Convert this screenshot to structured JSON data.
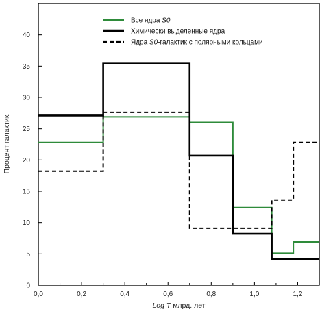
{
  "chart_data": {
    "type": "line",
    "step": true,
    "title": "",
    "xlabel": {
      "italic": "Log T",
      "rest": " млрд. лет"
    },
    "ylabel": "Процент галактик",
    "xlim": [
      0.0,
      1.3
    ],
    "ylim": [
      0,
      45
    ],
    "x_ticks": [
      0.0,
      0.2,
      0.4,
      0.6,
      0.8,
      1.0,
      1.2
    ],
    "x_tick_labels": [
      "0,0",
      "0,2",
      "0,4",
      "0,6",
      "0,8",
      "1,0",
      "1,2"
    ],
    "y_ticks": [
      0,
      5,
      10,
      15,
      20,
      25,
      30,
      35,
      40
    ],
    "y_tick_labels": [
      "0",
      "5",
      "10",
      "15",
      "20",
      "25",
      "30",
      "35",
      "40"
    ],
    "grid": false,
    "legend_position": "top-center",
    "series": [
      {
        "name": "Все ядра S0",
        "name_parts": [
          "Все ядра ",
          "S0",
          ""
        ],
        "color": "#2e8b3a",
        "style": "solid",
        "edges": [
          0.0,
          0.3,
          0.7,
          0.9,
          1.08,
          1.18,
          1.3
        ],
        "values": [
          22.8,
          26.9,
          26.0,
          12.4,
          5.1,
          6.9
        ]
      },
      {
        "name": "Химически выделенные ядра",
        "name_parts": [
          "Химически выделенные ядра",
          "",
          ""
        ],
        "color": "#000000",
        "style": "solid",
        "edges": [
          0.0,
          0.3,
          0.7,
          0.9,
          1.08,
          1.3
        ],
        "values": [
          27.1,
          35.4,
          20.7,
          8.2,
          4.2
        ]
      },
      {
        "name": "Ядра S0-галактик с полярными кольцами",
        "name_parts": [
          "Ядра ",
          "S0",
          "-галактик с полярными кольцами"
        ],
        "color": "#000000",
        "style": "dashed",
        "edges": [
          0.0,
          0.3,
          0.7,
          1.08,
          1.18,
          1.3
        ],
        "values": [
          18.2,
          27.6,
          9.1,
          13.6,
          22.8
        ]
      }
    ]
  }
}
